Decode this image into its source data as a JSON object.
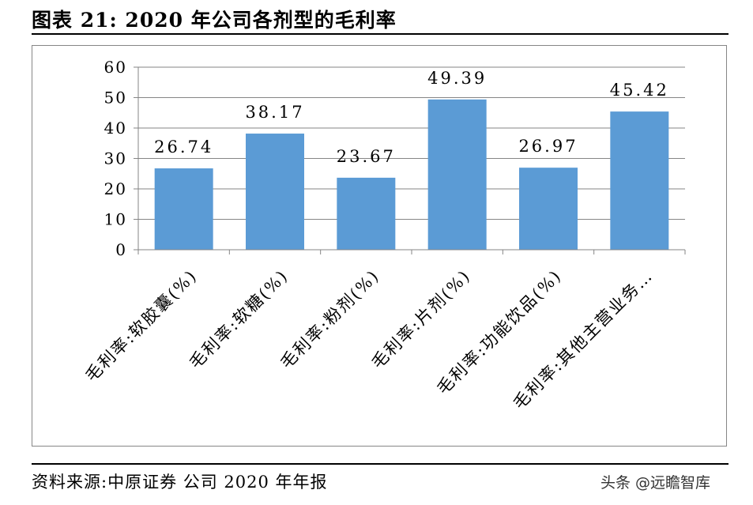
{
  "header": {
    "title": "图表 21:   2020 年公司各剂型的毛利率"
  },
  "footer": {
    "source": "资料来源:中原证券 公司 2020 年年报",
    "watermark": "头条 @远瞻智库"
  },
  "colors": {
    "bar": "#5B9BD5",
    "grid": "#868686",
    "axis": "#868686"
  },
  "chart_data": {
    "type": "bar",
    "categories": [
      "毛利率:软胶囊(%)",
      "毛利率:软糖(%)",
      "毛利率:粉剂(%)",
      "毛利率:片剂(%)",
      "毛利率:功能饮品(%)",
      "毛利率:其他主营业务…"
    ],
    "values": [
      26.74,
      38.17,
      23.67,
      49.39,
      26.97,
      45.42
    ],
    "value_labels": [
      "26.74",
      "38.17",
      "23.67",
      "49.39",
      "26.97",
      "45.42"
    ],
    "ylim": [
      0,
      60
    ],
    "yticks": [
      "0",
      "10",
      "20",
      "30",
      "40",
      "50",
      "60"
    ],
    "grid": true,
    "legend": "none"
  }
}
